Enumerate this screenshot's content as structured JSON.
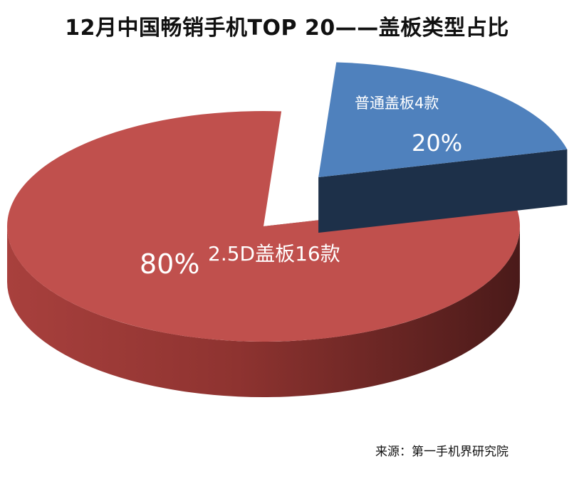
{
  "chart_data": {
    "type": "pie",
    "title": "12月中国畅销手机TOP 20——盖板类型占比",
    "source": "来源：第一手机界研究院",
    "slices": [
      {
        "name": "普通盖板4款",
        "value": 20,
        "percent_label": "20%",
        "color": "#4F81BD",
        "side_color": "#1F3350",
        "exploded": true
      },
      {
        "name": "2.5D盖板16款",
        "value": 80,
        "percent_label": "80%",
        "color": "#C0504D",
        "side_color": "#6E2422",
        "exploded": false
      }
    ]
  }
}
